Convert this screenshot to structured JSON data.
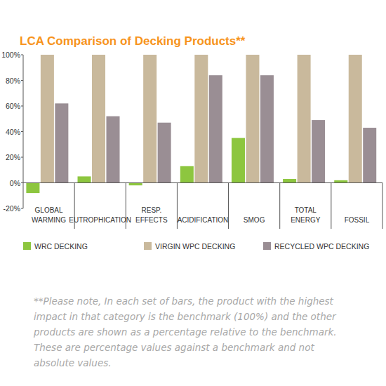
{
  "chart_data": {
    "type": "bar",
    "title": "LCA Comparison of Decking Products**",
    "categories": [
      "GLOBAL WARMING",
      "EUTROPHICATION",
      "RESP. EFFECTS",
      "ACIDIFICATION",
      "SMOG",
      "TOTAL ENERGY",
      "FOSSIL"
    ],
    "series": [
      {
        "name": "WRC DECKING",
        "color": "#8dc63f",
        "values": [
          -8,
          5,
          -2,
          13,
          35,
          3,
          2
        ]
      },
      {
        "name": "VIRGIN WPC DECKING",
        "color": "#c9b99c",
        "values": [
          100,
          100,
          100,
          100,
          100,
          100,
          100
        ]
      },
      {
        "name": "RECYCLED WPC DECKING",
        "color": "#9a8e94",
        "values": [
          62,
          52,
          47,
          84,
          84,
          49,
          43
        ]
      }
    ],
    "ylim": [
      -20,
      100
    ],
    "yticks": [
      {
        "value": -20,
        "label": "-20%"
      },
      {
        "value": 0,
        "label": "0%"
      },
      {
        "value": 20,
        "label": "20%"
      },
      {
        "value": 40,
        "label": "40%"
      },
      {
        "value": 60,
        "label": "60%"
      },
      {
        "value": 80,
        "label": "80%"
      },
      {
        "value": 100,
        "label": "100%"
      }
    ],
    "grid": false,
    "legend": "bottom",
    "annotations": [
      "**Please note, In each set of bars, the product with the highest impact in that category is the benchmark (100%) and the other products are shown as a percentage relative to the benchmark. These are percentage values against a benchmark and not absolute values."
    ]
  }
}
